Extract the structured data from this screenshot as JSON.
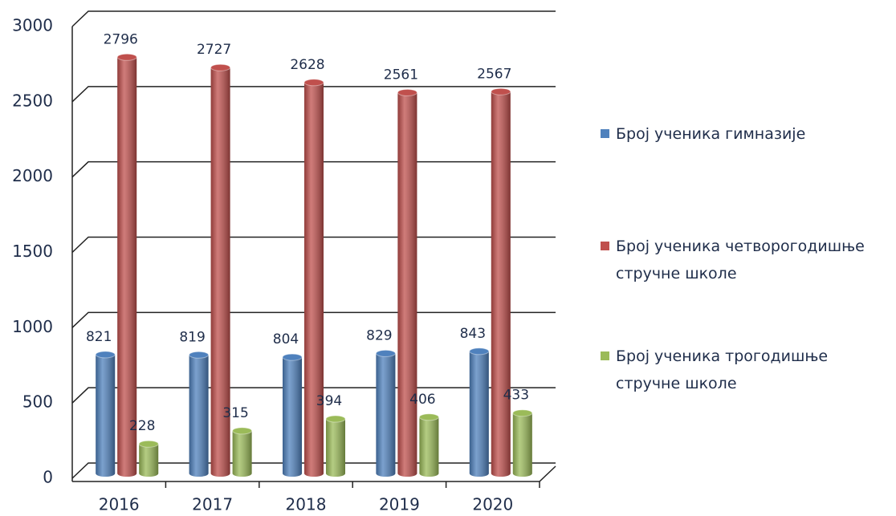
{
  "chart_data": {
    "type": "bar",
    "categories": [
      "2016",
      "2017",
      "2018",
      "2019",
      "2020"
    ],
    "series": [
      {
        "name": "Број ученика гимназије",
        "color": "#4f81bd",
        "values": [
          821,
          819,
          804,
          829,
          843
        ]
      },
      {
        "name": "Број ученика четворогодишње стручне школе",
        "color": "#c0504d",
        "values": [
          2796,
          2727,
          2628,
          2561,
          2567
        ]
      },
      {
        "name": "Број ученика трогодишње стручне школе",
        "color": "#9bbb59",
        "values": [
          228,
          315,
          394,
          406,
          433
        ]
      }
    ],
    "ylim": [
      0,
      3000
    ],
    "yticks": [
      0,
      500,
      1000,
      1500,
      2000,
      2500,
      3000
    ],
    "grid": true,
    "legend": "right"
  }
}
